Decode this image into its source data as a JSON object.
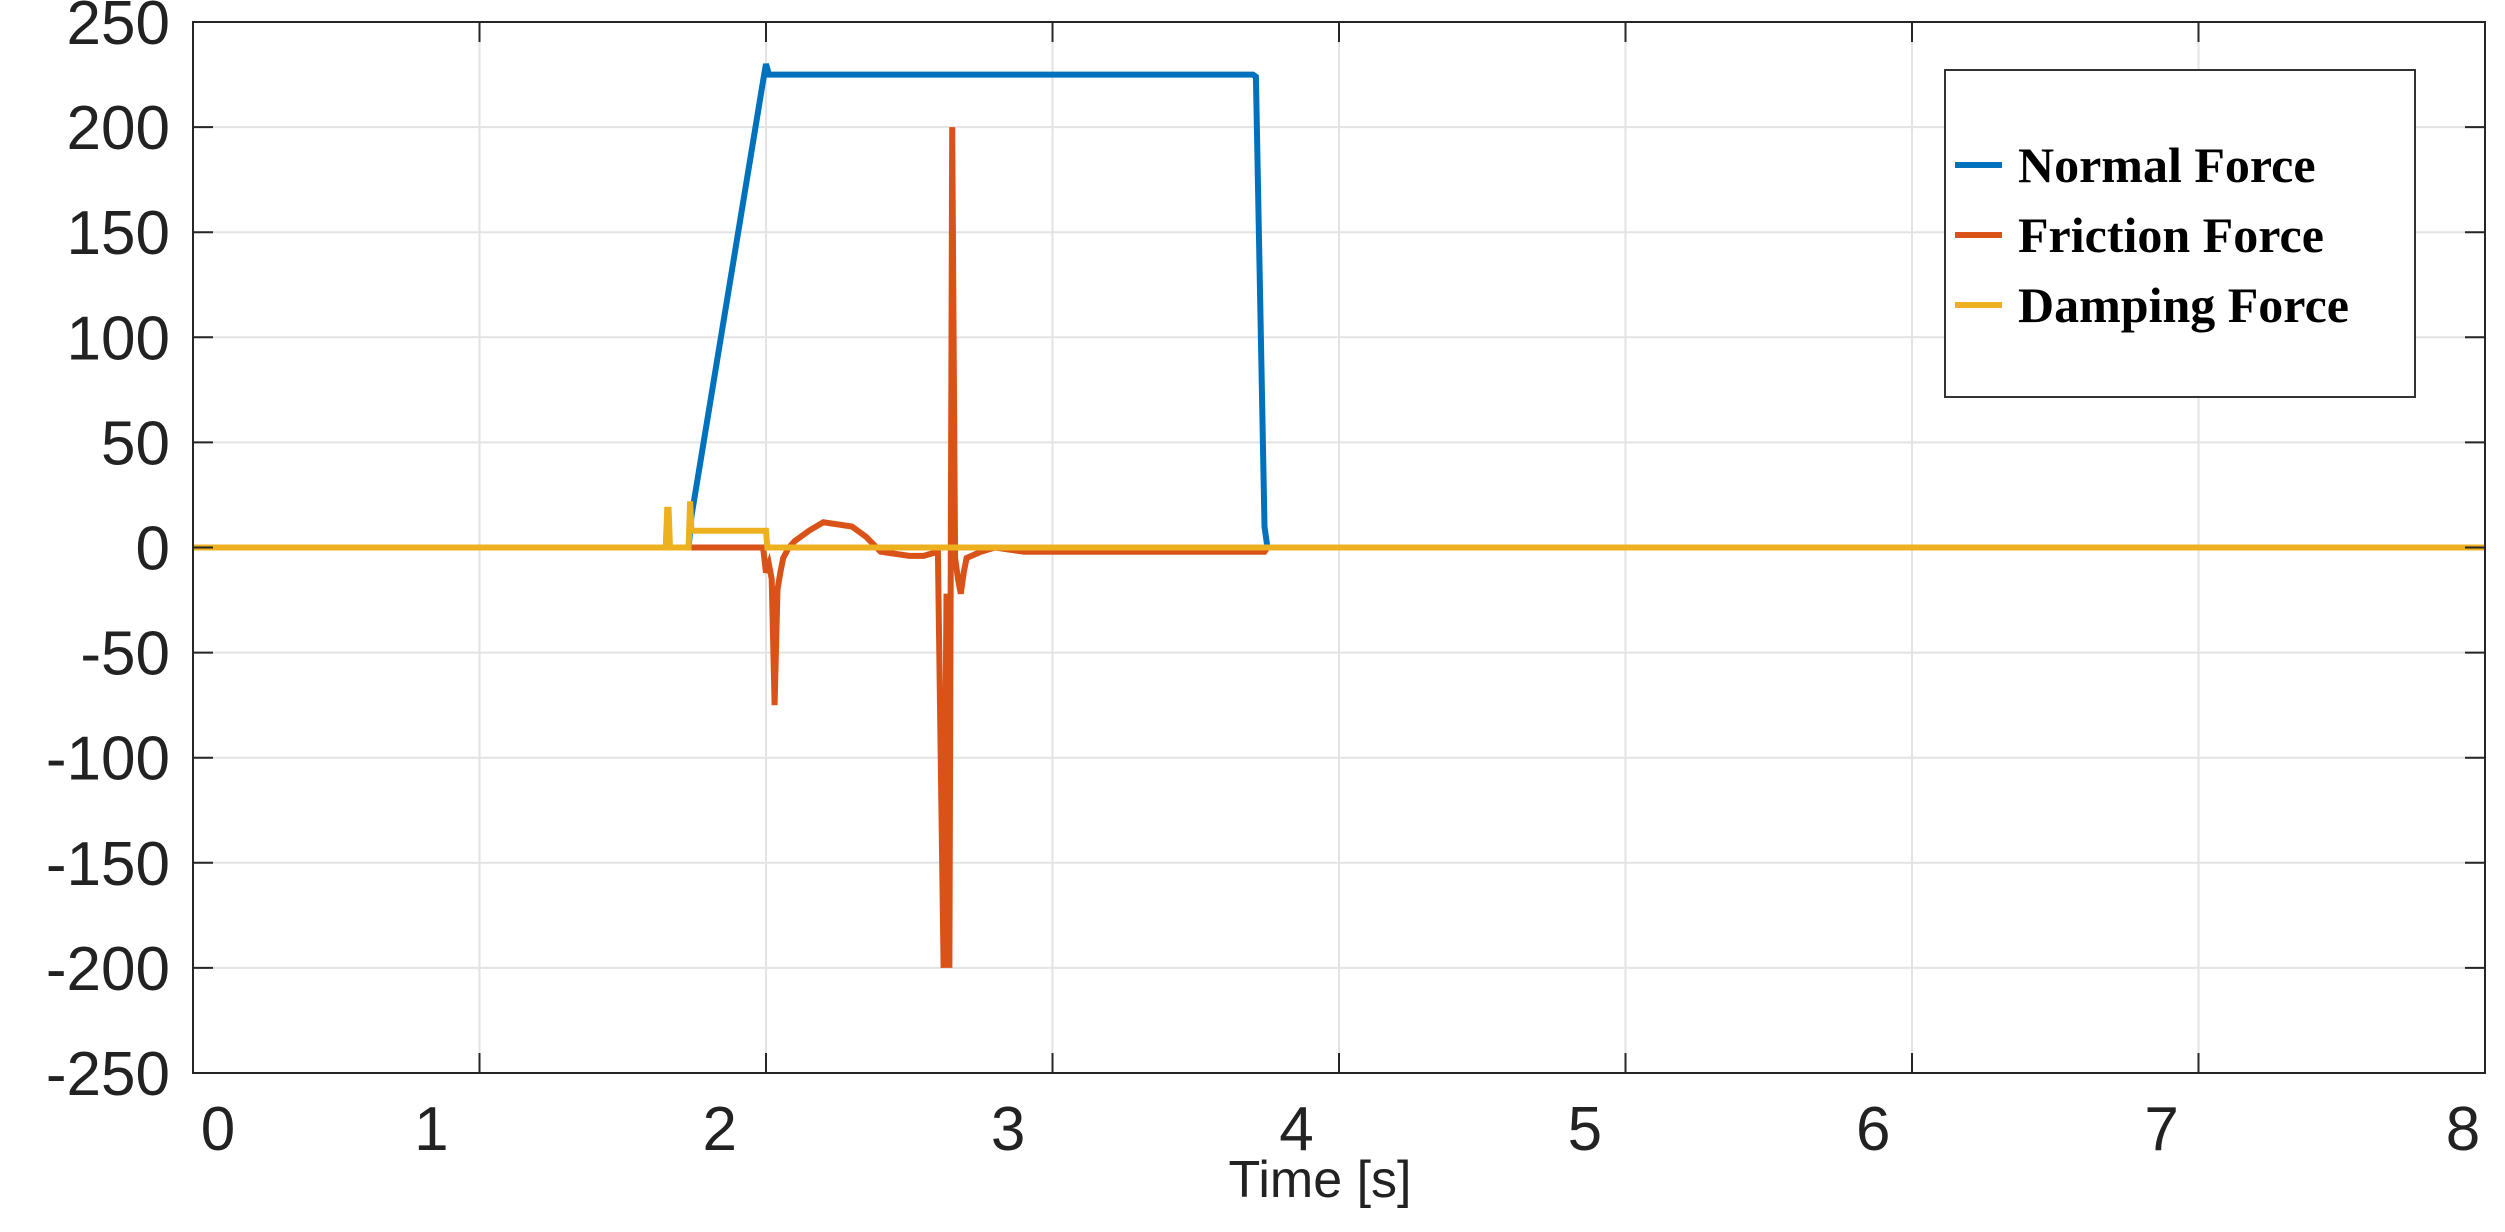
{
  "chart_data": {
    "type": "line",
    "title": "",
    "xlabel": "Time [s]",
    "ylabel": "",
    "xlim": [
      0,
      8
    ],
    "ylim": [
      -250,
      250
    ],
    "xticks": [
      0,
      1,
      2,
      3,
      4,
      5,
      6,
      7,
      8
    ],
    "yticks": [
      250,
      200,
      150,
      100,
      50,
      0,
      -50,
      -100,
      -150,
      -200,
      -250
    ],
    "x_tick_labels": [
      "0",
      "1",
      "2",
      "3",
      "4",
      "5",
      "6",
      "7",
      "8"
    ],
    "y_tick_labels": [
      "250",
      "200",
      "150",
      "100",
      "50",
      "0",
      "-50",
      "-100",
      "-150",
      "-200",
      "-250"
    ],
    "grid": true,
    "legend_position": "top-right",
    "series": [
      {
        "name": "Normal Force",
        "color": "#0072BD",
        "x": [
          0,
          1.73,
          1.74,
          1.99,
          2.0,
          2.01,
          3.7,
          3.71,
          3.74,
          3.75,
          8
        ],
        "y": [
          0,
          0,
          15,
          222,
          230,
          225,
          225,
          224,
          10,
          0,
          0
        ]
      },
      {
        "name": "Friction Force",
        "color": "#D95319",
        "x": [
          0,
          1.74,
          1.99,
          2.0,
          2.01,
          2.02,
          2.03,
          2.04,
          2.05,
          2.06,
          2.08,
          2.1,
          2.15,
          2.2,
          2.3,
          2.35,
          2.4,
          2.5,
          2.55,
          2.6,
          2.62,
          2.63,
          2.64,
          2.65,
          2.66,
          2.67,
          2.68,
          2.69,
          2.7,
          2.75,
          2.8,
          2.85,
          2.9,
          3.0,
          3.5,
          3.74,
          3.75,
          8
        ],
        "y": [
          0,
          0,
          0,
          -12,
          -8,
          -15,
          -75,
          -20,
          -12,
          -5,
          0,
          3,
          8,
          12,
          10,
          5,
          -2,
          -4,
          -4,
          -2,
          -200,
          -22,
          -200,
          200,
          -5,
          -15,
          -22,
          -12,
          -5,
          -2,
          0,
          -1,
          -2,
          -2,
          -2,
          -2,
          0,
          0
        ]
      },
      {
        "name": "Damping Force",
        "color": "#EDB120",
        "x": [
          0,
          1.65,
          1.655,
          1.66,
          1.665,
          1.73,
          1.735,
          1.74,
          1.745,
          2.0,
          2.005,
          8
        ],
        "y": [
          0,
          0,
          18,
          18,
          0,
          0,
          22,
          8,
          8,
          8,
          0,
          0
        ]
      }
    ]
  }
}
